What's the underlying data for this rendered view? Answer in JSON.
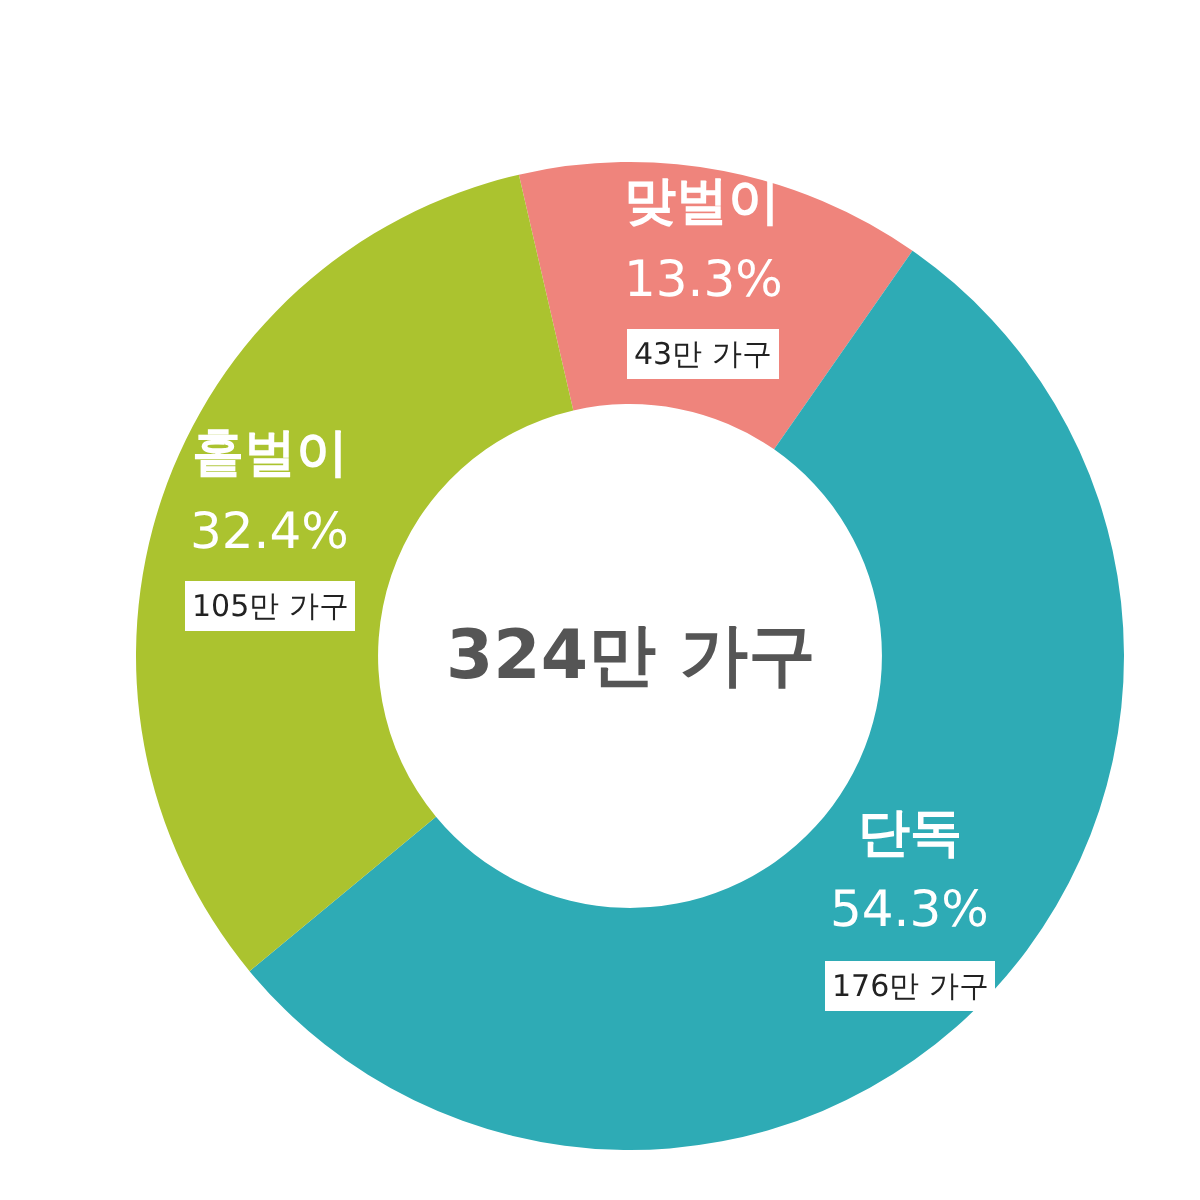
{
  "chart_data": {
    "type": "donut",
    "categories": [
      "맞벌이",
      "단독",
      "홑벌이"
    ],
    "values": [
      13.3,
      54.3,
      32.4
    ],
    "colors": [
      "#ef847c",
      "#2eabb5",
      "#abc32f"
    ],
    "value_labels": [
      "13.3%",
      "54.3%",
      "32.4%"
    ],
    "annotations": [
      "324만 가구",
      {
        "text": "43만 가구",
        "x": "맞벌이"
      },
      {
        "text": "176만 가구",
        "x": "단독"
      },
      {
        "text": "105만 가구",
        "x": "홑벌이"
      }
    ]
  }
}
